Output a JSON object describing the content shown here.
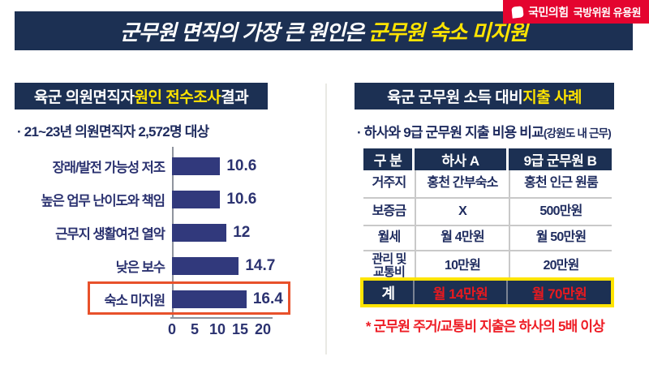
{
  "badge": {
    "party": "국민의힘",
    "member": "국방위원 유용원",
    "color": "#e4042f",
    "icon": "speech-bubble-icon"
  },
  "banner": {
    "prefix": "군무원 면직의 가장 큰 원인은 ",
    "highlight": "군무원 숙소 미지원",
    "bg_color": "#1c3053",
    "highlight_color": "#ffe400"
  },
  "left_panel": {
    "title": {
      "prefix": "육군 의원면직자 ",
      "highlight": "원인 전수조사",
      "suffix": " 결과"
    },
    "subtitle": "· 21~23년 의원면직자 2,572명 대상"
  },
  "chart_data": {
    "type": "bar",
    "orientation": "horizontal",
    "title": "육군 의원면직자 원인 전수조사 결과",
    "categories": [
      "장래/발전 가능성 저조",
      "높은 업무 난이도와 책임",
      "근무지 생활여건 열악",
      "낮은 보수",
      "숙소 미지원"
    ],
    "values": [
      10.6,
      10.6,
      12,
      14.7,
      16.4
    ],
    "value_labels": [
      "10.6",
      "10.6",
      "12",
      "14.7",
      "16.4"
    ],
    "highlight_index": 4,
    "x_ticks": [
      0,
      5,
      10,
      15,
      20
    ],
    "xlim": [
      0,
      20
    ],
    "grid": false,
    "bar_color": "#31397c",
    "highlight_box_color": "#e8512b"
  },
  "right_panel": {
    "title": {
      "prefix": "육군 군무원 소득 대비 ",
      "highlight": "지출 사례"
    },
    "subtitle": {
      "main": "· 하사와 9급 군무원 지출 비용 비교",
      "paren": "(강원도 내 근무)"
    },
    "table": {
      "headers": [
        "구 분",
        "하사 A",
        "9급 군무원 B"
      ],
      "rows": [
        [
          "거주지",
          "홍천 간부숙소",
          "홍천 인근 원룸"
        ],
        [
          "보증금",
          "X",
          "500만원"
        ],
        [
          "월세",
          "월 4만원",
          "월 50만원"
        ],
        [
          "관리 및\n교통비",
          "10만원",
          "20만원"
        ]
      ],
      "total": [
        "계",
        "월 14만원",
        "월 70만원"
      ]
    },
    "note": "* 군무원 주거/교통비 지출은 하사의 5배 이상"
  }
}
